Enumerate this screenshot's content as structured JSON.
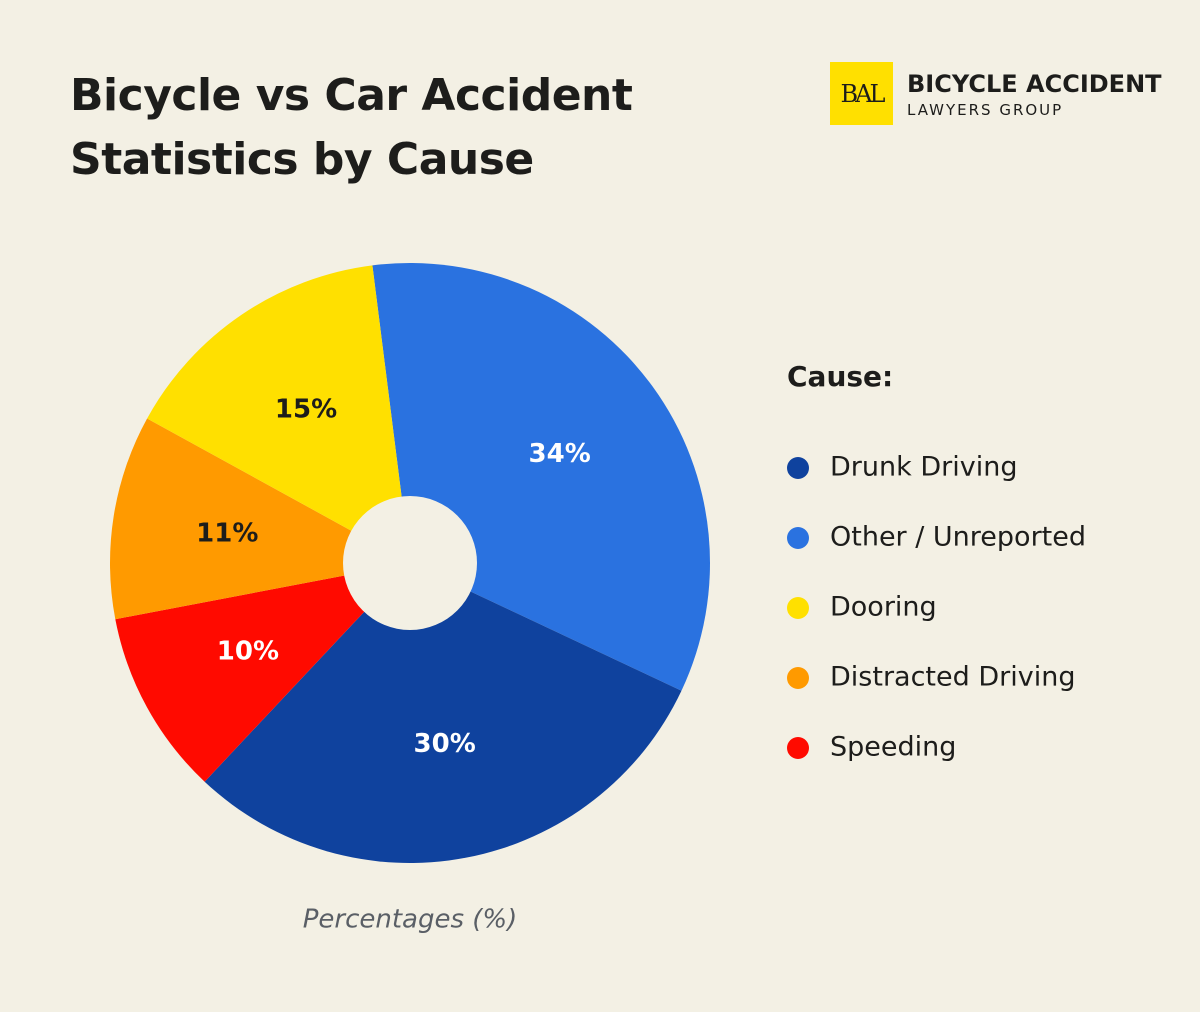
{
  "brand": {
    "mark": "BAL",
    "name": "BICYCLE ACCIDENT",
    "tagline": "LAWYERS GROUP"
  },
  "chart_data": {
    "type": "pie",
    "title": "Bicycle vs Car Accident Statistics by Cause",
    "legend_title": "Cause:",
    "caption": "Percentages (%)",
    "categories": [
      "Other / Unreported",
      "Drunk Driving",
      "Speeding",
      "Distracted Driving",
      "Dooring"
    ],
    "values": [
      34,
      30,
      10,
      11,
      15
    ],
    "value_labels": [
      "34%",
      "30%",
      "10%",
      "11%",
      "15%"
    ],
    "colors": [
      "#2a72e0",
      "#0f429e",
      "#ff0a00",
      "#ff9a00",
      "#ffe000"
    ],
    "donut": true,
    "legend": "right"
  }
}
